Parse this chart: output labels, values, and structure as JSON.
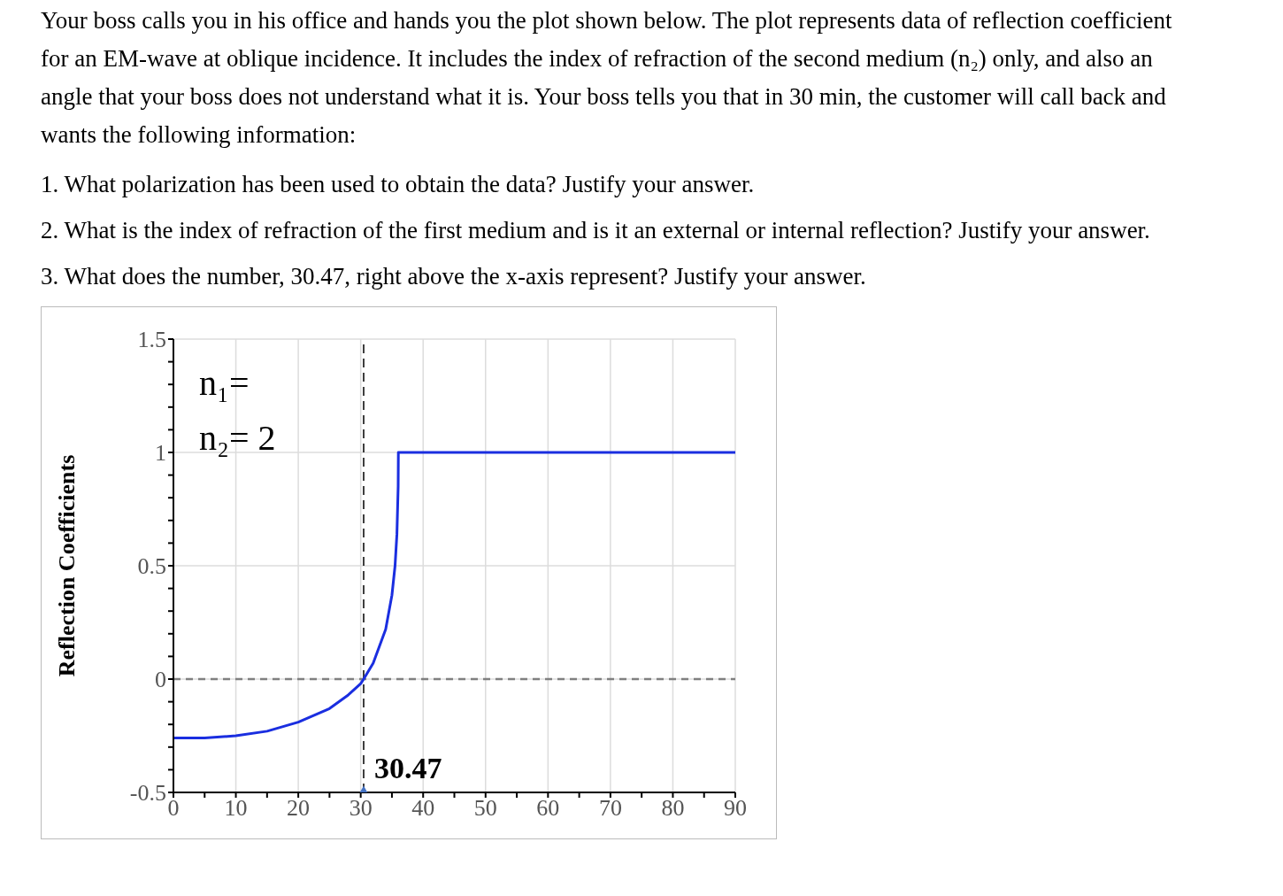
{
  "chart_data": {
    "type": "line",
    "annotations": [
      "Your boss calls you in his office and hands you the plot shown below. The plot represents data of reflection coefficient for an EM-wave at oblique incidence.  It includes the index of refraction of the second medium (n₂) only, and also an angle that your boss does not understand what it is.  Your boss tells you that in 30 min, the customer will call back and wants the following information:",
      "1. What polarization has been used to obtain the data? Justify your answer.",
      "2. What is the index of refraction of the first medium and is it an external or internal reflection? Justify your answer.",
      "3. What does the number, 30.47, right above the x-axis represent? Justify your answer.",
      "n₁=",
      "n₂= 2"
    ],
    "ylabel": "Reflection Coefficients",
    "xlim": [
      0,
      90
    ],
    "xticks": [
      0,
      {
        "value": 5,
        "label": null
      },
      10,
      {
        "value": 15,
        "label": null
      },
      20,
      {
        "value": 25,
        "label": null
      },
      30,
      {
        "value": 35,
        "label": null
      },
      40,
      {
        "value": 45,
        "label": null
      },
      50,
      {
        "value": 55,
        "label": null
      },
      60,
      {
        "value": 65,
        "label": null
      },
      70,
      {
        "value": 75,
        "label": null
      },
      80,
      {
        "value": 85,
        "label": null
      },
      90
    ],
    "ylim": [
      -0.5,
      1.5
    ],
    "yticks": [
      -0.5,
      {
        "value": -0.4,
        "label": null
      },
      {
        "value": -0.3,
        "label": null
      },
      {
        "value": -0.2,
        "label": null
      },
      {
        "value": -0.1,
        "label": null
      },
      0,
      {
        "value": 0.1,
        "label": null
      },
      {
        "value": 0.2,
        "label": null
      },
      {
        "value": 0.3,
        "label": null
      },
      {
        "value": 0.4,
        "label": null
      },
      0.5,
      {
        "value": 0.6,
        "label": null
      },
      {
        "value": 0.7,
        "label": null
      },
      {
        "value": 0.8,
        "label": null
      },
      {
        "value": 0.9,
        "label": null
      },
      1,
      {
        "value": 1.1,
        "label": null
      },
      {
        "value": 1.2,
        "label": null
      },
      {
        "value": 1.3,
        "label": null
      },
      {
        "value": 1.4,
        "label": null
      },
      1.5
    ],
    "grid": true,
    "ref_lines": [
      {
        "axis": "y",
        "value": 0,
        "color": "#808080",
        "line_style": "dashed"
      },
      {
        "axis": "x",
        "value": 30.47,
        "label": "30.47",
        "color": "#000000",
        "line_style": "dashed"
      }
    ],
    "series": [
      {
        "color": "#1a2ee0",
        "marker": "none",
        "line_style": "solid",
        "x": [
          0,
          5,
          10,
          15,
          20,
          25,
          28,
          30,
          30.47,
          32,
          34,
          35,
          35.5,
          35.8,
          36,
          36.03,
          50,
          70,
          90
        ],
        "values": [
          -0.26,
          -0.26,
          -0.25,
          -0.23,
          -0.19,
          -0.13,
          -0.07,
          -0.02,
          0,
          0.07,
          0.22,
          0.37,
          0.5,
          0.64,
          0.85,
          1,
          1,
          1,
          1
        ]
      },
      {
        "type": "scatter",
        "color": "#4472c4",
        "marker": "diamond",
        "x": [
          30.47
        ],
        "values": [
          -0.5
        ]
      }
    ]
  }
}
